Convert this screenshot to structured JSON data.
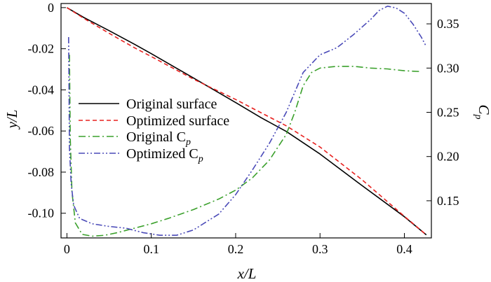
{
  "chart_data": {
    "type": "line",
    "xlabel": "x/L",
    "ylabel": "y/L",
    "y2label_main": "C",
    "y2label_sub": "p",
    "xlim": [
      -0.007,
      0.432
    ],
    "ylim": [
      -0.112,
      0.002
    ],
    "y2lim": [
      0.108,
      0.373
    ],
    "x_ticks": [
      {
        "v": 0,
        "label": "0"
      },
      {
        "v": 0.1,
        "label": "0.1"
      },
      {
        "v": 0.2,
        "label": "0.2"
      },
      {
        "v": 0.3,
        "label": "0.3"
      },
      {
        "v": 0.4,
        "label": "0.4"
      }
    ],
    "y_ticks": [
      {
        "v": 0,
        "label": "0"
      },
      {
        "v": -0.02,
        "label": "-0.02"
      },
      {
        "v": -0.04,
        "label": "-0.04"
      },
      {
        "v": -0.06,
        "label": "-0.06"
      },
      {
        "v": -0.08,
        "label": "-0.08"
      },
      {
        "v": -0.1,
        "label": "-0.10"
      }
    ],
    "y2_ticks": [
      {
        "v": 0.15,
        "label": "0.15"
      },
      {
        "v": 0.2,
        "label": "0.20"
      },
      {
        "v": 0.25,
        "label": "0.25"
      },
      {
        "v": 0.3,
        "label": "0.30"
      },
      {
        "v": 0.35,
        "label": "0.35"
      }
    ],
    "legend_position": "center-left",
    "series": [
      {
        "name": "Original surface",
        "axis": "left",
        "color": "#000000",
        "dash": "",
        "points": [
          [
            0,
            0
          ],
          [
            0.02,
            -0.0048
          ],
          [
            0.05,
            -0.0112
          ],
          [
            0.08,
            -0.0178
          ],
          [
            0.1,
            -0.0224
          ],
          [
            0.15,
            -0.0342
          ],
          [
            0.2,
            -0.0462
          ],
          [
            0.23,
            -0.0535
          ],
          [
            0.26,
            -0.0602
          ],
          [
            0.3,
            -0.0712
          ],
          [
            0.35,
            -0.0866
          ],
          [
            0.4,
            -0.1017
          ],
          [
            0.426,
            -0.1105
          ]
        ]
      },
      {
        "name": "Optimized surface",
        "axis": "left",
        "color": "#e8211f",
        "dash": "6,4",
        "points": [
          [
            0,
            0
          ],
          [
            0.02,
            -0.0052
          ],
          [
            0.05,
            -0.0125
          ],
          [
            0.08,
            -0.0195
          ],
          [
            0.1,
            -0.0238
          ],
          [
            0.15,
            -0.0348
          ],
          [
            0.2,
            -0.0447
          ],
          [
            0.23,
            -0.0511
          ],
          [
            0.26,
            -0.0575
          ],
          [
            0.3,
            -0.0678
          ],
          [
            0.35,
            -0.0838
          ],
          [
            0.4,
            -0.1015
          ],
          [
            0.426,
            -0.1105
          ]
        ]
      },
      {
        "name": "Original C",
        "name_sub": "p",
        "axis": "right",
        "color": "#3aa02b",
        "dash": "10,4,2,4",
        "points": [
          [
            0.003,
            0.315
          ],
          [
            0.004,
            0.22
          ],
          [
            0.006,
            0.16
          ],
          [
            0.01,
            0.125
          ],
          [
            0.018,
            0.112
          ],
          [
            0.03,
            0.11
          ],
          [
            0.045,
            0.111
          ],
          [
            0.06,
            0.114
          ],
          [
            0.08,
            0.119
          ],
          [
            0.1,
            0.124
          ],
          [
            0.12,
            0.13
          ],
          [
            0.15,
            0.14
          ],
          [
            0.18,
            0.152
          ],
          [
            0.2,
            0.162
          ],
          [
            0.22,
            0.176
          ],
          [
            0.24,
            0.196
          ],
          [
            0.26,
            0.225
          ],
          [
            0.27,
            0.25
          ],
          [
            0.28,
            0.28
          ],
          [
            0.29,
            0.295
          ],
          [
            0.3,
            0.3
          ],
          [
            0.32,
            0.302
          ],
          [
            0.34,
            0.302
          ],
          [
            0.36,
            0.3
          ],
          [
            0.38,
            0.299
          ],
          [
            0.4,
            0.297
          ],
          [
            0.42,
            0.296
          ]
        ]
      },
      {
        "name": "Optimized C",
        "name_sub": "p",
        "axis": "right",
        "color": "#4a4ab8",
        "dash": "9,3,2,3,2,3",
        "points": [
          [
            0.002,
            0.335
          ],
          [
            0.0025,
            0.28
          ],
          [
            0.003,
            0.21
          ],
          [
            0.005,
            0.17
          ],
          [
            0.008,
            0.145
          ],
          [
            0.015,
            0.13
          ],
          [
            0.03,
            0.124
          ],
          [
            0.05,
            0.121
          ],
          [
            0.07,
            0.119
          ],
          [
            0.09,
            0.114
          ],
          [
            0.11,
            0.111
          ],
          [
            0.13,
            0.111
          ],
          [
            0.15,
            0.117
          ],
          [
            0.18,
            0.135
          ],
          [
            0.2,
            0.157
          ],
          [
            0.22,
            0.185
          ],
          [
            0.24,
            0.215
          ],
          [
            0.26,
            0.25
          ],
          [
            0.28,
            0.295
          ],
          [
            0.3,
            0.315
          ],
          [
            0.32,
            0.323
          ],
          [
            0.34,
            0.338
          ],
          [
            0.36,
            0.355
          ],
          [
            0.37,
            0.365
          ],
          [
            0.38,
            0.37
          ],
          [
            0.39,
            0.368
          ],
          [
            0.4,
            0.362
          ],
          [
            0.41,
            0.35
          ],
          [
            0.42,
            0.335
          ],
          [
            0.425,
            0.326
          ]
        ]
      }
    ]
  }
}
